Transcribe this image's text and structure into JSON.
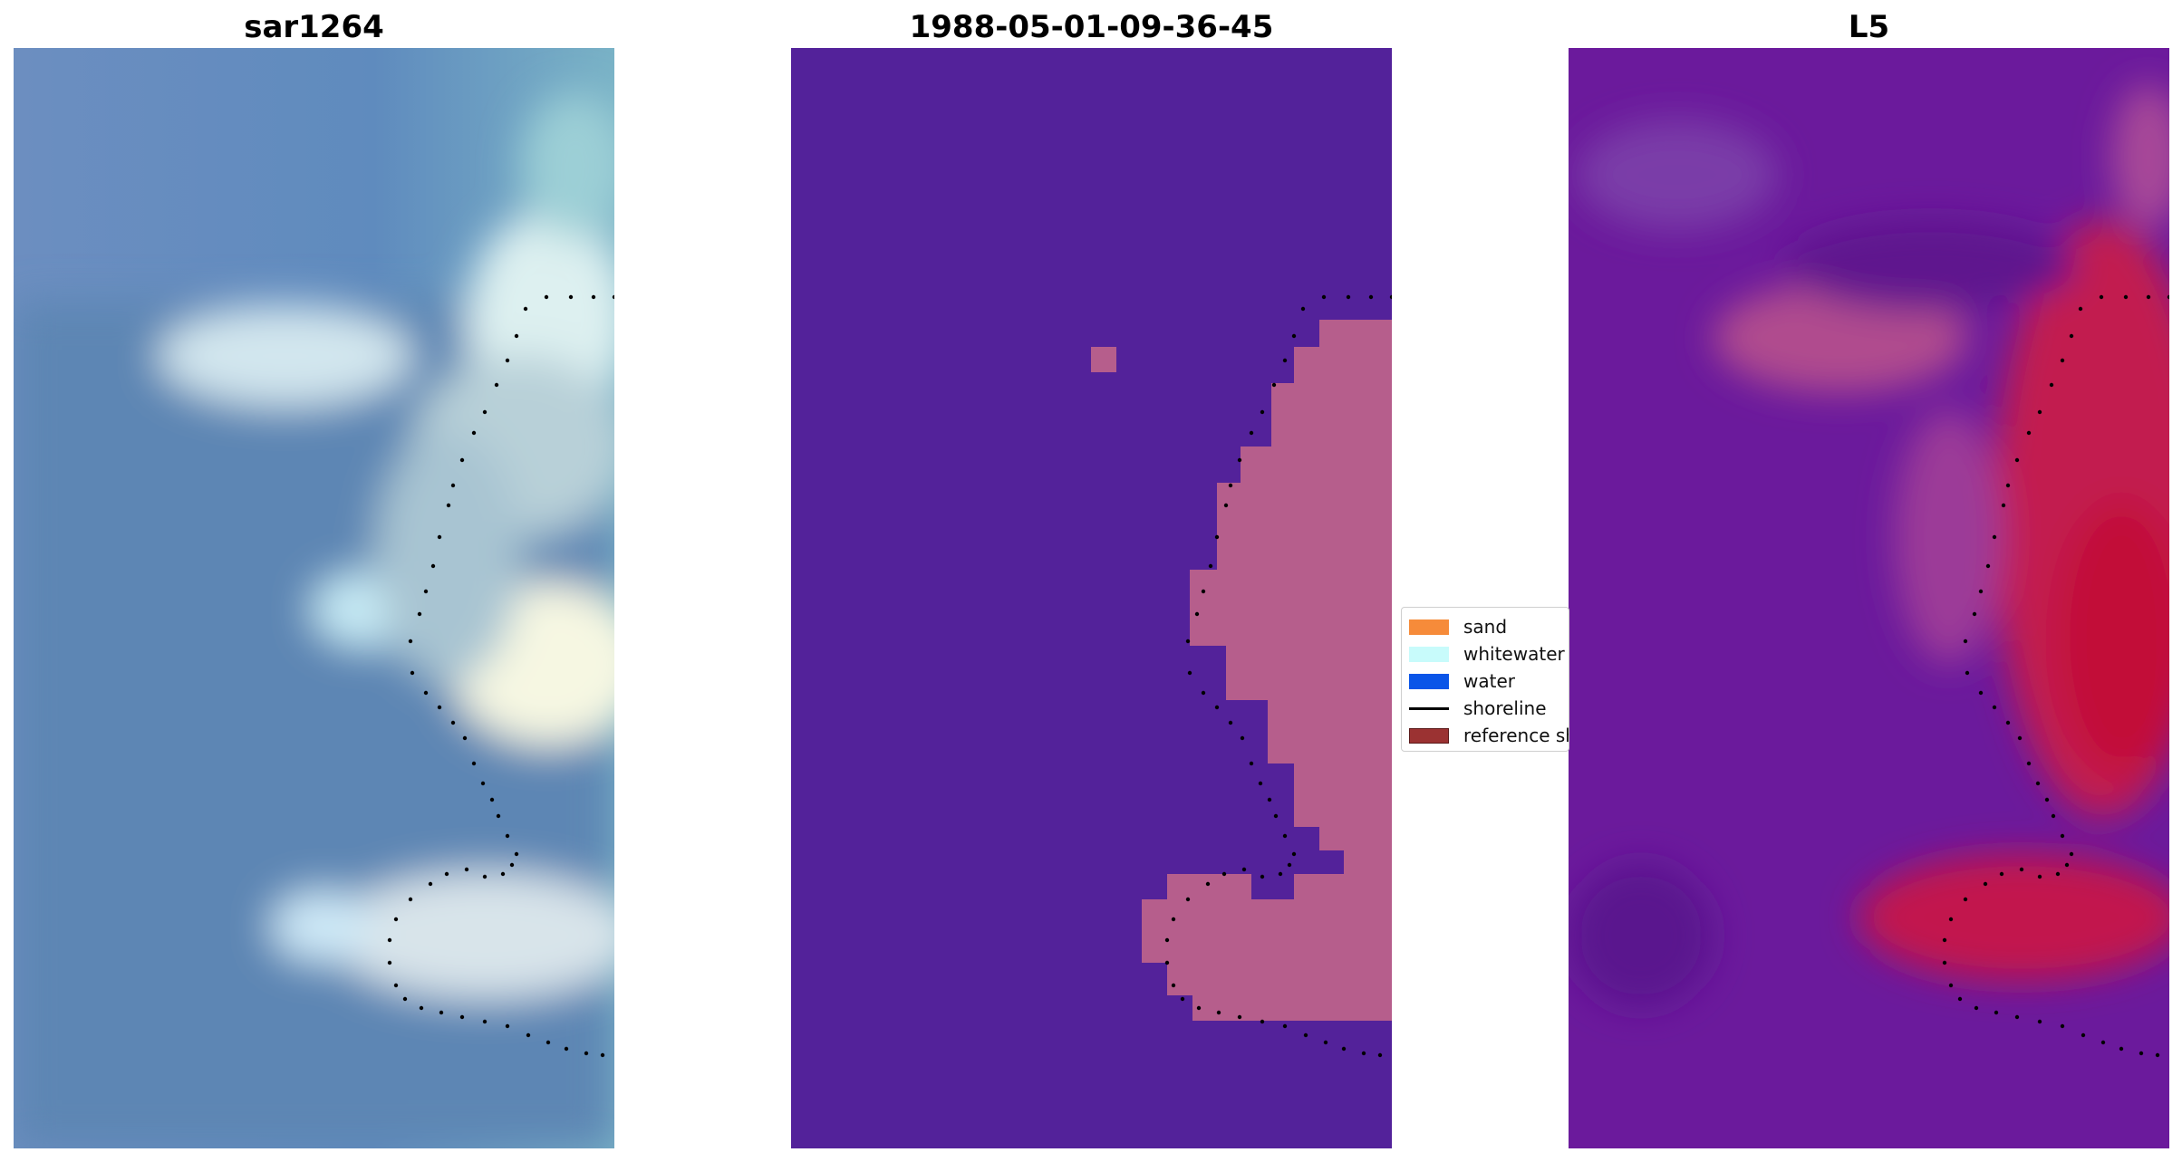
{
  "panels": [
    {
      "title": "sar1264"
    },
    {
      "title": "1988-05-01-09-36-45"
    },
    {
      "title": "L5"
    }
  ],
  "legend": {
    "items": [
      {
        "label": "sand",
        "kind": "patch",
        "color": "#F68B3A"
      },
      {
        "label": "whitewater",
        "kind": "patch",
        "color": "#C8FBFB"
      },
      {
        "label": "water",
        "kind": "patch",
        "color": "#0A55E8"
      },
      {
        "label": "shoreline",
        "kind": "line",
        "color": "#000000"
      },
      {
        "label": "reference shoreline",
        "kind": "patch",
        "color": "#9B3232"
      }
    ]
  },
  "colors": {
    "classified_water": "#53229A",
    "classified_land": "#B65E8C",
    "rgb_base": "#5D86B4",
    "rgb_bright": "#E6F2F2",
    "index_low": "#6B1A9C",
    "index_high": "#C2163E"
  }
}
